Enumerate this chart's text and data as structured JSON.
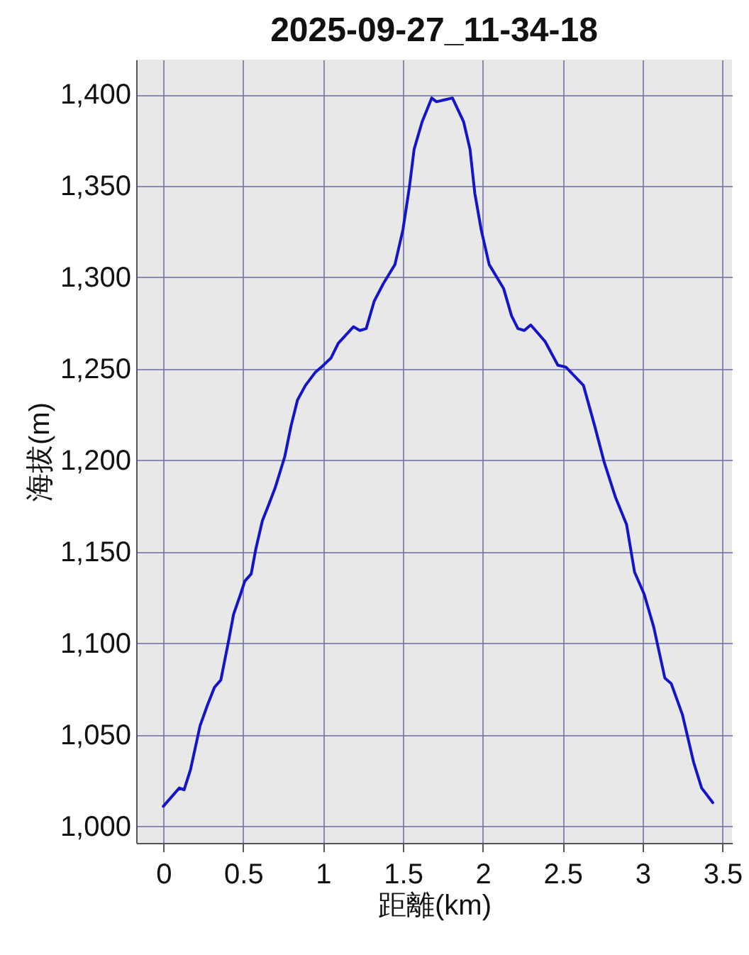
{
  "chart_data": {
    "type": "line",
    "title": "2025-09-27_11-34-18",
    "xlabel": "距離(km)",
    "ylabel": "海拔(m)",
    "x": [
      0.0,
      0.1,
      0.13,
      0.17,
      0.23,
      0.275,
      0.32,
      0.36,
      0.41,
      0.44,
      0.48,
      0.51,
      0.55,
      0.58,
      0.62,
      0.665,
      0.7,
      0.76,
      0.8,
      0.84,
      0.89,
      0.95,
      0.99,
      1.05,
      1.095,
      1.19,
      1.23,
      1.27,
      1.32,
      1.38,
      1.45,
      1.5,
      1.54,
      1.57,
      1.62,
      1.68,
      1.71,
      1.76,
      1.81,
      1.88,
      1.92,
      1.95,
      1.99,
      2.04,
      2.13,
      2.18,
      2.22,
      2.26,
      2.3,
      2.39,
      2.47,
      2.52,
      2.63,
      2.7,
      2.76,
      2.83,
      2.9,
      2.95,
      3.01,
      3.07,
      3.14,
      3.18,
      3.25,
      3.32,
      3.37,
      3.44
    ],
    "series": [
      {
        "color": "#1414c8",
        "values": [
          1011,
          1021,
          1020,
          1031,
          1055,
          1066,
          1076,
          1080,
          1102,
          1116,
          1126,
          1134,
          1138,
          1152,
          1167,
          1177,
          1185,
          1202,
          1219,
          1233,
          1241,
          1248,
          1251,
          1256,
          1264,
          1273,
          1271,
          1272,
          1287,
          1297,
          1307,
          1326,
          1349,
          1370,
          1385,
          1398,
          1396,
          1397,
          1398,
          1385,
          1370,
          1346,
          1326,
          1307,
          1294,
          1279,
          1272,
          1271,
          1274,
          1265,
          1252,
          1251,
          1241,
          1219,
          1199,
          1180,
          1165,
          1139,
          1127,
          1109,
          1081,
          1078,
          1061,
          1035,
          1021,
          1013
        ]
      }
    ],
    "xlim": [
      -0.17,
      3.56
    ],
    "ylim": [
      991,
      1419
    ],
    "xticks": [
      0,
      0.5,
      1,
      1.5,
      2,
      2.5,
      3,
      3.5
    ],
    "yticks": [
      {
        "value": 1000,
        "label": "1,000"
      },
      {
        "value": 1050,
        "label": "1,050"
      },
      {
        "value": 1100,
        "label": "1,100"
      },
      {
        "value": 1150,
        "label": "1,150"
      },
      {
        "value": 1200,
        "label": "1,200"
      },
      {
        "value": 1250,
        "label": "1,250"
      },
      {
        "value": 1300,
        "label": "1,300"
      },
      {
        "value": 1350,
        "label": "1,350"
      },
      {
        "value": 1400,
        "label": "1,400"
      }
    ],
    "grid": true,
    "marker": "none",
    "line_style": "solid"
  }
}
